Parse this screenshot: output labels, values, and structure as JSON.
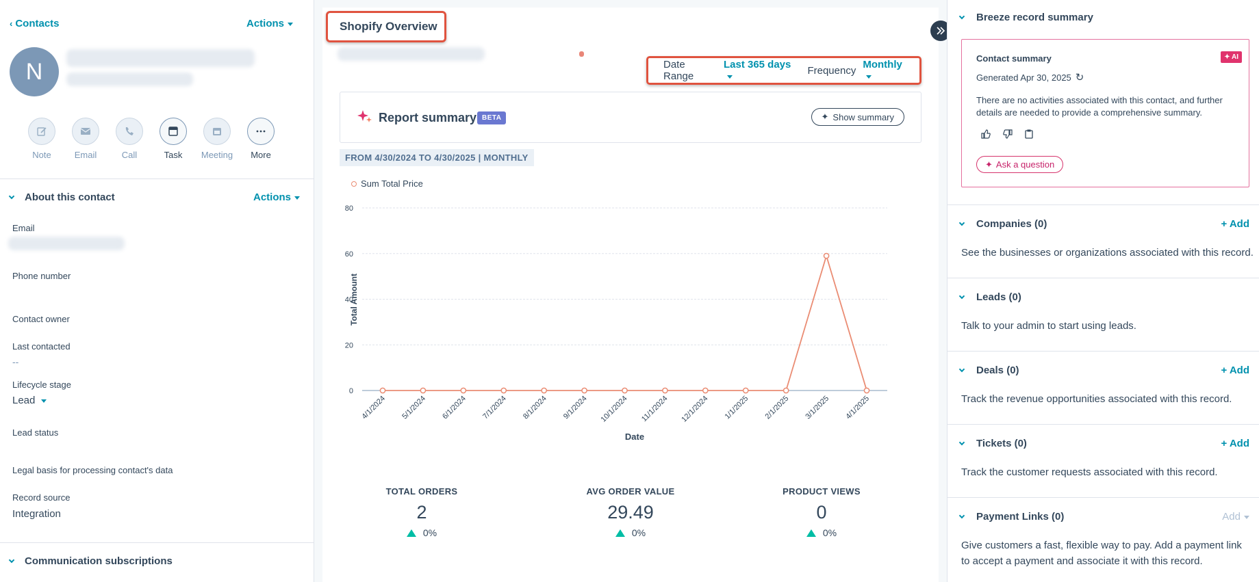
{
  "left": {
    "back_label": "Contacts",
    "actions_label": "Actions",
    "avatar_initial": "N",
    "quick_actions": [
      {
        "label": "Note",
        "icon": "pencil-icon"
      },
      {
        "label": "Email",
        "icon": "envelope-icon"
      },
      {
        "label": "Call",
        "icon": "phone-icon"
      },
      {
        "label": "Task",
        "icon": "task-icon"
      },
      {
        "label": "Meeting",
        "icon": "calendar-icon"
      },
      {
        "label": "More",
        "icon": "ellipsis-icon"
      }
    ],
    "about_title": "About this contact",
    "about_actions": "Actions",
    "fields": {
      "email_label": "Email",
      "phone_label": "Phone number",
      "owner_label": "Contact owner",
      "last_contacted_label": "Last contacted",
      "last_contacted_value": "--",
      "lifecycle_label": "Lifecycle stage",
      "lifecycle_value": "Lead",
      "lead_status_label": "Lead status",
      "legal_label": "Legal basis for processing contact's data",
      "record_source_label": "Record source",
      "record_source_value": "Integration"
    },
    "comm_title": "Communication subscriptions"
  },
  "center": {
    "title": "Shopify Overview",
    "date_range_label": "Date Range",
    "date_range_value": "Last 365 days",
    "frequency_label": "Frequency",
    "frequency_value": "Monthly",
    "report_summary": "Report summary",
    "beta": "BETA",
    "show_summary": "Show summary",
    "range_text": "FROM 4/30/2024 TO 4/30/2025 | MONTHLY",
    "kpis": [
      {
        "label": "TOTAL ORDERS",
        "value": "2",
        "change": "0%"
      },
      {
        "label": "AVG ORDER VALUE",
        "value": "29.49",
        "change": "0%"
      },
      {
        "label": "PRODUCT VIEWS",
        "value": "0",
        "change": "0%"
      }
    ]
  },
  "chart_data": {
    "type": "line",
    "x": [
      "4/1/2024",
      "5/1/2024",
      "6/1/2024",
      "7/1/2024",
      "8/1/2024",
      "9/1/2024",
      "10/1/2024",
      "11/1/2024",
      "12/1/2024",
      "1/1/2025",
      "2/1/2025",
      "3/1/2025",
      "4/1/2025"
    ],
    "series": [
      {
        "name": "Sum Total Price",
        "values": [
          0,
          0,
          0,
          0,
          0,
          0,
          0,
          0,
          0,
          0,
          0,
          59,
          0
        ],
        "color": "#ea8c73"
      }
    ],
    "xlabel": "Date",
    "ylabel": "Total Amount",
    "ylim": [
      0,
      80
    ],
    "yticks": [
      0,
      20,
      40,
      60,
      80
    ],
    "grid": true,
    "legend": "top-left"
  },
  "right": {
    "breeze_title": "Breeze record summary",
    "contact_summary_title": "Contact summary",
    "ai_badge": "AI",
    "generated": "Generated Apr 30, 2025",
    "summary_text": "There are no activities associated with this contact, and further details are needed to provide a comprehensive summary.",
    "ask_question": "Ask a question",
    "add_label": "+ Add",
    "sections": [
      {
        "title": "Companies (0)",
        "text": "See the businesses or organizations associated with this record."
      },
      {
        "title": "Leads (0)",
        "text": "Talk to your admin to start using leads."
      },
      {
        "title": "Deals (0)",
        "text": "Track the revenue opportunities associated with this record."
      },
      {
        "title": "Tickets (0)",
        "text": "Track the customer requests associated with this record."
      },
      {
        "title": "Payment Links (0)",
        "text": "Give customers a fast, flexible way to pay. Add a payment link to accept a payment and associate it with this record."
      }
    ],
    "payment_add": "Add"
  }
}
